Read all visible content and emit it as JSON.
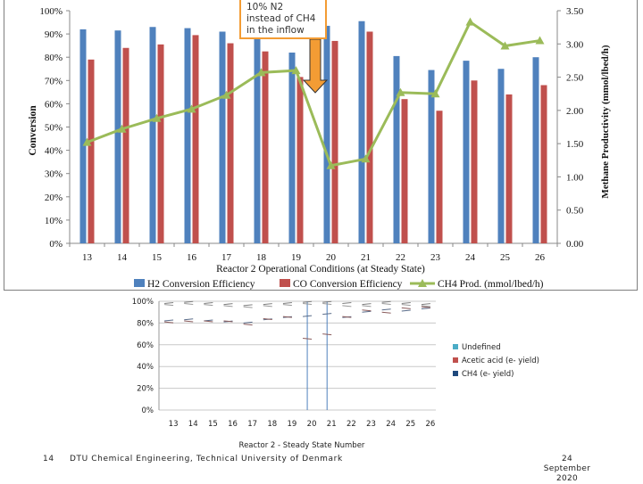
{
  "colors": {
    "h2_bar": "#4f81bd",
    "co_bar": "#c0504d",
    "ch4_line": "#9bbb59",
    "callout_border": "#f39c34",
    "arrow_fill": "#f39c34",
    "marker_line": "#4f81bd"
  },
  "callout": {
    "line1": "10% N2",
    "line2": "instead of CH4",
    "line3": "in the inflow",
    "icon": "down-arrow-icon"
  },
  "chart_data": [
    {
      "type": "bar",
      "categories": [
        "13",
        "14",
        "15",
        "16",
        "17",
        "18",
        "19",
        "20",
        "21",
        "22",
        "23",
        "24",
        "25",
        "26"
      ],
      "xlabel": "Reactor 2 Operational Conditions (at Steady State)",
      "ylabel": "Conversion",
      "y2label": "Methane Productivity (mmol/lbed/h)",
      "yticks": [
        "0%",
        "10%",
        "20%",
        "30%",
        "40%",
        "50%",
        "60%",
        "70%",
        "80%",
        "90%",
        "100%"
      ],
      "y2ticks": [
        "0.00",
        "0.50",
        "1.00",
        "1.50",
        "2.00",
        "2.50",
        "3.00",
        "3.50"
      ],
      "ylim": [
        0,
        100
      ],
      "y2lim": [
        0,
        3.5
      ],
      "legend_position": "bottom",
      "series": [
        {
          "name": "H2 Conversion Efficiency",
          "kind": "bar",
          "axis": "left",
          "values": [
            92,
            91.5,
            93,
            92.5,
            91,
            90,
            82,
            93.5,
            95.5,
            80.5,
            74.5,
            78.5,
            75,
            80
          ]
        },
        {
          "name": "CO Conversion Efficiency",
          "kind": "bar",
          "axis": "left",
          "values": [
            79,
            84,
            85.5,
            89.5,
            86,
            82.5,
            71.5,
            87,
            91,
            62,
            57,
            70,
            64,
            68
          ]
        },
        {
          "name": "CH4 Prod. (mmol/lbed/h)",
          "kind": "line",
          "axis": "right",
          "values": [
            1.52,
            1.72,
            1.88,
            2.02,
            2.23,
            2.57,
            2.6,
            1.17,
            1.27,
            2.27,
            2.25,
            3.33,
            2.97,
            3.05
          ]
        }
      ]
    },
    {
      "type": "bar",
      "categories": [
        "13",
        "14",
        "15",
        "16",
        "17",
        "18",
        "19",
        "20",
        "21",
        "22",
        "23",
        "24",
        "25",
        "26"
      ],
      "xlabel": "Reactor 2 - Steady State Number",
      "yticks": [
        "0%",
        "20%",
        "40%",
        "60%",
        "80%",
        "100%"
      ],
      "ylim": [
        0,
        100
      ],
      "legend_position": "right",
      "markers_at": [
        "20",
        "21"
      ],
      "series": [
        {
          "name": "Undefined",
          "color": "#4bacc6",
          "values": [
            0,
            0,
            0,
            0,
            0,
            0,
            0,
            0,
            0,
            0,
            0,
            0,
            0,
            0
          ]
        },
        {
          "name": "Acetic acid (e- yield)",
          "color": "#c0504d",
          "values": [
            0,
            0,
            0,
            0,
            0,
            0,
            0,
            0,
            0,
            0,
            0,
            0,
            0,
            0
          ]
        },
        {
          "name": "CH4 (e- yield)",
          "color": "#1f497d",
          "values": [
            0,
            0,
            0,
            0,
            0,
            0,
            0,
            0,
            0,
            0,
            0,
            0,
            0,
            0
          ]
        }
      ],
      "line_levels": [
        [
          98,
          99,
          98,
          97,
          96,
          97,
          98,
          99,
          99,
          98,
          97,
          99,
          98,
          97
        ],
        [
          97,
          98,
          97,
          96,
          95,
          96,
          97,
          98,
          98,
          96,
          96,
          98,
          97,
          96
        ],
        [
          82,
          83,
          82,
          81,
          80,
          83,
          85,
          86,
          88,
          85,
          90,
          92,
          91,
          93
        ],
        [
          81,
          82,
          82,
          82,
          79,
          84,
          86,
          66,
          70,
          86,
          92,
          90,
          94,
          95
        ]
      ]
    }
  ],
  "footer": {
    "page_number": "14",
    "institution": "DTU Chemical Engineering, Technical University of Denmark",
    "date_line1": "24",
    "date_line2": "September",
    "date_line3": "2020"
  }
}
